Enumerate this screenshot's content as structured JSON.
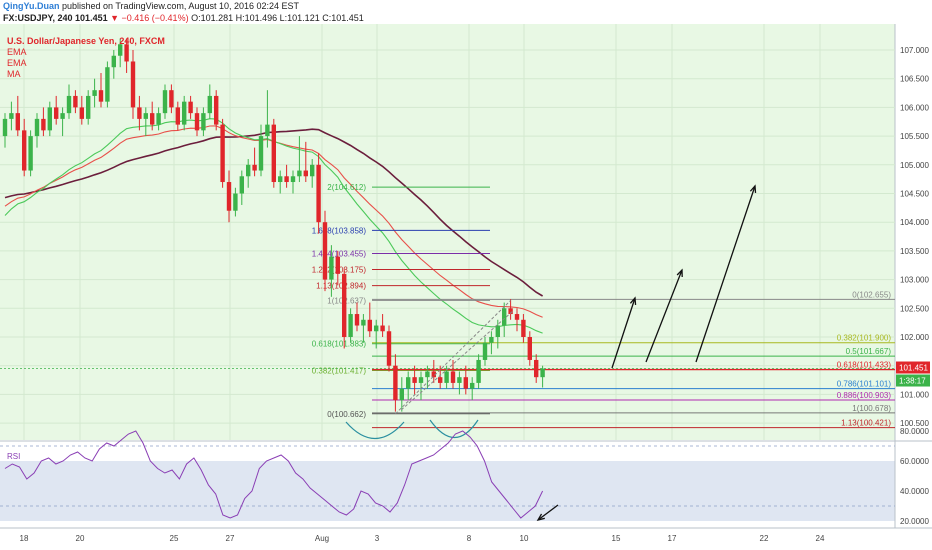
{
  "header": {
    "author": "QingYu.Duan",
    "published": " published on TradingView.com, August 10, 2016 02:24 EST",
    "symbol": "FX:USDJPY, 240",
    "last": "101.451",
    "change": "▼ −0.416 (−0.41%)",
    "ohlc": "O:101.281 H:101.496 L:101.121 C:101.451"
  },
  "colors": {
    "background": "#e8f8e4",
    "up_candle": "#3bb34a",
    "down_candle": "#e0262b",
    "ema_fast": "#4cc95a",
    "ema_slow": "#e8504a",
    "ma": "#6b1e3c",
    "rsi": "#8a3fb5",
    "arrows": "#111111"
  },
  "chart_data": [
    {
      "type": "candlestick",
      "title": "U.S. Dollar/Japanese Yen, 240, FXCM",
      "indicators": [
        "EMA",
        "EMA",
        "MA"
      ],
      "x_ticks": [
        "18",
        "20",
        "25",
        "27",
        "Aug",
        "3",
        "8",
        "10",
        "15",
        "17",
        "22",
        "24"
      ],
      "y_ticks": [
        "107.000",
        "106.500",
        "106.000",
        "105.500",
        "105.000",
        "104.500",
        "104.000",
        "103.500",
        "103.000",
        "102.500",
        "102.000",
        "101.500",
        "101.000",
        "100.500"
      ],
      "ylim": [
        100.3,
        107.2
      ],
      "last_price": "101.451",
      "countdown": "1:38:17",
      "fib_extension": [
        {
          "label": "2(104.612)",
          "value": 104.612
        },
        {
          "label": "1.618(103.858)",
          "value": 103.858
        },
        {
          "label": "1.414(103.455)",
          "value": 103.455
        },
        {
          "label": "1.272(103.175)",
          "value": 103.175
        },
        {
          "label": "1.13(102.894)",
          "value": 102.894
        },
        {
          "label": "1(102.637)",
          "value": 102.637
        },
        {
          "label": "0.618(101.883)",
          "value": 101.883
        },
        {
          "label": "0.382(101.417)",
          "value": 101.417
        },
        {
          "label": "0(100.662)",
          "value": 100.662
        }
      ],
      "fib_retracement": [
        {
          "label": "0(102.655)",
          "value": 102.655
        },
        {
          "label": "0.382(101.900)",
          "value": 101.9
        },
        {
          "label": "0.5(101.667)",
          "value": 101.667
        },
        {
          "label": "0.618(101.433)",
          "value": 101.433
        },
        {
          "label": "0.786(101.101)",
          "value": 101.101
        },
        {
          "label": "0.886(100.903)",
          "value": 100.903
        },
        {
          "label": "1(100.678)",
          "value": 100.678
        },
        {
          "label": "1.13(100.421)",
          "value": 100.421
        }
      ],
      "candles": [
        [
          105.5,
          105.9,
          105.3,
          105.8
        ],
        [
          105.8,
          106.1,
          105.6,
          105.9
        ],
        [
          105.9,
          106.2,
          105.5,
          105.6
        ],
        [
          105.6,
          105.8,
          104.8,
          104.9
        ],
        [
          104.9,
          105.6,
          104.8,
          105.5
        ],
        [
          105.5,
          105.9,
          105.3,
          105.8
        ],
        [
          105.8,
          106.0,
          105.5,
          105.6
        ],
        [
          105.6,
          106.1,
          105.5,
          106.0
        ],
        [
          106.0,
          106.2,
          105.7,
          105.8
        ],
        [
          105.8,
          106.0,
          105.5,
          105.9
        ],
        [
          105.9,
          106.4,
          105.8,
          106.2
        ],
        [
          106.2,
          106.3,
          105.9,
          106.0
        ],
        [
          106.0,
          106.2,
          105.7,
          105.8
        ],
        [
          105.8,
          106.3,
          105.7,
          106.2
        ],
        [
          106.2,
          106.5,
          106.0,
          106.3
        ],
        [
          106.3,
          106.6,
          106.0,
          106.1
        ],
        [
          106.1,
          106.8,
          106.0,
          106.7
        ],
        [
          106.7,
          107.0,
          106.5,
          106.9
        ],
        [
          106.9,
          107.2,
          106.7,
          107.1
        ],
        [
          107.1,
          107.2,
          106.6,
          106.8
        ],
        [
          106.8,
          107.0,
          105.8,
          106.0
        ],
        [
          106.0,
          106.2,
          105.6,
          105.8
        ],
        [
          105.8,
          106.0,
          105.5,
          105.9
        ],
        [
          105.9,
          106.1,
          105.6,
          105.7
        ],
        [
          105.7,
          106.0,
          105.6,
          105.9
        ],
        [
          105.9,
          106.4,
          105.8,
          106.3
        ],
        [
          106.3,
          106.4,
          105.9,
          106.0
        ],
        [
          106.0,
          106.1,
          105.6,
          105.7
        ],
        [
          105.7,
          106.2,
          105.6,
          106.1
        ],
        [
          106.1,
          106.2,
          105.8,
          105.9
        ],
        [
          105.9,
          106.0,
          105.5,
          105.6
        ],
        [
          105.6,
          106.0,
          105.5,
          105.9
        ],
        [
          105.9,
          106.4,
          105.8,
          106.2
        ],
        [
          106.2,
          106.3,
          105.6,
          105.7
        ],
        [
          105.7,
          105.8,
          104.6,
          104.7
        ],
        [
          104.7,
          104.9,
          104.0,
          104.2
        ],
        [
          104.2,
          104.6,
          104.1,
          104.5
        ],
        [
          104.5,
          104.9,
          104.3,
          104.8
        ],
        [
          104.8,
          105.1,
          104.6,
          105.0
        ],
        [
          105.0,
          105.3,
          104.8,
          104.9
        ],
        [
          104.9,
          105.7,
          104.8,
          105.5
        ],
        [
          105.5,
          106.3,
          105.3,
          105.7
        ],
        [
          105.7,
          105.8,
          104.6,
          104.7
        ],
        [
          104.7,
          104.9,
          104.5,
          104.8
        ],
        [
          104.8,
          105.0,
          104.6,
          104.7
        ],
        [
          104.7,
          104.9,
          104.5,
          104.8
        ],
        [
          104.8,
          105.5,
          104.7,
          104.9
        ],
        [
          104.9,
          105.4,
          104.7,
          104.8
        ],
        [
          104.8,
          105.1,
          104.6,
          105.0
        ],
        [
          105.0,
          105.2,
          103.8,
          104.0
        ],
        [
          104.0,
          104.2,
          102.8,
          103.0
        ],
        [
          103.0,
          103.6,
          102.7,
          103.4
        ],
        [
          103.4,
          103.5,
          102.9,
          103.1
        ],
        [
          103.1,
          103.2,
          101.8,
          102.0
        ],
        [
          102.0,
          102.5,
          101.9,
          102.4
        ],
        [
          102.4,
          102.6,
          102.1,
          102.2
        ],
        [
          102.2,
          102.4,
          101.9,
          102.3
        ],
        [
          102.3,
          102.6,
          102.0,
          102.1
        ],
        [
          102.1,
          102.3,
          101.8,
          102.2
        ],
        [
          102.2,
          102.4,
          102.0,
          102.1
        ],
        [
          102.1,
          102.2,
          101.4,
          101.5
        ],
        [
          101.5,
          101.7,
          100.7,
          100.9
        ],
        [
          100.9,
          101.3,
          100.7,
          101.1
        ],
        [
          101.1,
          101.4,
          100.9,
          101.3
        ],
        [
          101.3,
          101.5,
          101.0,
          101.2
        ],
        [
          101.2,
          101.4,
          100.9,
          101.3
        ],
        [
          101.3,
          101.5,
          101.1,
          101.4
        ],
        [
          101.4,
          101.6,
          101.2,
          101.3
        ],
        [
          101.3,
          101.5,
          101.1,
          101.2
        ],
        [
          101.2,
          101.5,
          101.1,
          101.4
        ],
        [
          101.4,
          101.6,
          101.1,
          101.2
        ],
        [
          101.2,
          101.4,
          101.0,
          101.3
        ],
        [
          101.3,
          101.5,
          101.0,
          101.1
        ],
        [
          101.1,
          101.3,
          100.9,
          101.2
        ],
        [
          101.2,
          101.7,
          101.1,
          101.6
        ],
        [
          101.6,
          102.0,
          101.5,
          101.9
        ],
        [
          101.9,
          102.1,
          101.7,
          102.0
        ],
        [
          102.0,
          102.3,
          101.8,
          102.2
        ],
        [
          102.2,
          102.6,
          102.0,
          102.5
        ],
        [
          102.5,
          102.66,
          102.3,
          102.4
        ],
        [
          102.4,
          102.5,
          102.1,
          102.3
        ],
        [
          102.3,
          102.4,
          101.9,
          102.0
        ],
        [
          102.0,
          102.1,
          101.5,
          101.6
        ],
        [
          101.6,
          101.7,
          101.2,
          101.3
        ],
        [
          101.3,
          101.5,
          101.12,
          101.45
        ]
      ]
    },
    {
      "type": "line",
      "title": "RSI",
      "y_ticks": [
        "80.0000",
        "60.0000",
        "40.0000",
        "20.0000"
      ],
      "ylim": [
        15,
        83
      ],
      "band": [
        30,
        70
      ],
      "values": [
        55,
        58,
        56,
        48,
        52,
        60,
        62,
        58,
        60,
        64,
        66,
        62,
        60,
        68,
        72,
        70,
        74,
        78,
        80,
        72,
        60,
        55,
        52,
        54,
        48,
        58,
        62,
        54,
        44,
        38,
        24,
        22,
        24,
        35,
        40,
        55,
        60,
        62,
        64,
        60,
        52,
        48,
        42,
        38,
        34,
        30,
        26,
        24,
        28,
        40,
        38,
        32,
        30,
        26,
        32,
        44,
        58,
        60,
        62,
        64,
        68,
        72,
        78,
        80,
        76,
        70,
        60,
        46,
        40,
        34,
        28,
        22,
        26,
        30,
        40
      ]
    }
  ]
}
